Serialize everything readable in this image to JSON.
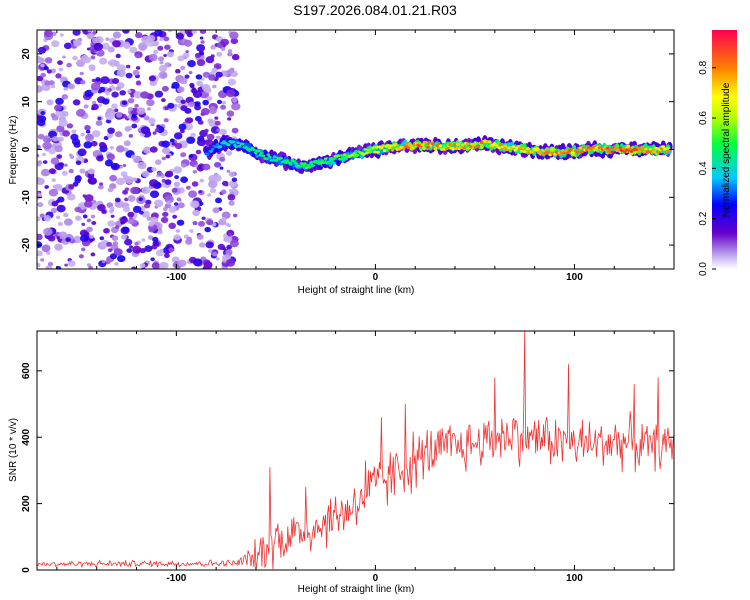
{
  "title": "S197.2026.084.01.21.R03",
  "chart_data": [
    {
      "type": "heatmap",
      "name": "spectrogram",
      "xlabel": "Height of straight line (km)",
      "ylabel": "Frequency (Hz)",
      "xlim": [
        -170,
        150
      ],
      "ylim": [
        -25,
        25
      ],
      "xticks": [
        -100,
        0,
        100
      ],
      "yticks": [
        -20,
        -10,
        0,
        10,
        20
      ],
      "colorbar": {
        "label": "Normalized spectral amplitude",
        "range": [
          0,
          0.95
        ],
        "ticks": [
          0.0,
          0.2,
          0.4,
          0.6,
          0.8
        ],
        "tick_labels": [
          "0.0",
          "0.2",
          "0.4",
          "0.6",
          "0.8"
        ]
      },
      "noise_region": {
        "x": [
          -170,
          -70
        ],
        "y": [
          -25,
          25
        ],
        "amplitude": [
          0.05,
          0.25
        ]
      },
      "ridge": {
        "x": [
          -85,
          -75,
          -65,
          -55,
          -45,
          -35,
          -25,
          -15,
          -5,
          5,
          15,
          25,
          35,
          45,
          55,
          65,
          75,
          85,
          95,
          105,
          115,
          125,
          135,
          148
        ],
        "freq": [
          -0.5,
          1.5,
          0.5,
          -1.5,
          -2.5,
          -3.5,
          -2.5,
          -1.5,
          -0.5,
          0.3,
          0.8,
          1.0,
          0.5,
          0.8,
          1.2,
          0.5,
          0.0,
          -0.5,
          -0.5,
          0.0,
          0.0,
          0.0,
          0.0,
          0.0
        ],
        "amplitude": [
          0.35,
          0.45,
          0.45,
          0.5,
          0.5,
          0.55,
          0.55,
          0.6,
          0.65,
          0.75,
          0.85,
          0.9,
          0.8,
          0.85,
          0.85,
          0.8,
          0.8,
          0.85,
          0.85,
          0.85,
          0.9,
          0.95,
          0.85,
          0.8
        ]
      }
    },
    {
      "type": "line",
      "name": "snr",
      "xlabel": "Height of straight line (km)",
      "ylabel": "SNR (10 * v/v)",
      "xlim": [
        -170,
        150
      ],
      "ylim": [
        0,
        720
      ],
      "xticks": [
        -100,
        0,
        100
      ],
      "yticks": [
        0,
        200,
        400,
        600
      ],
      "color": "#ee3333",
      "envelope": {
        "x": [
          -170,
          -70,
          -62,
          -50,
          -40,
          -30,
          -20,
          -10,
          0,
          10,
          20,
          30,
          40,
          50,
          60,
          70,
          80,
          90,
          100,
          110,
          120,
          130,
          140,
          150
        ],
        "mean": [
          18,
          20,
          35,
          90,
          110,
          130,
          160,
          200,
          250,
          290,
          330,
          360,
          370,
          380,
          400,
          410,
          400,
          390,
          380,
          380,
          390,
          380,
          370,
          380
        ],
        "amp": [
          8,
          10,
          40,
          70,
          70,
          70,
          70,
          70,
          80,
          80,
          80,
          70,
          70,
          70,
          70,
          80,
          70,
          70,
          70,
          70,
          70,
          70,
          60,
          60
        ]
      },
      "peaks": [
        {
          "x": -53,
          "y": 310
        },
        {
          "x": -35,
          "y": 250
        },
        {
          "x": -5,
          "y": 330
        },
        {
          "x": 3,
          "y": 460
        },
        {
          "x": 15,
          "y": 500
        },
        {
          "x": 60,
          "y": 580
        },
        {
          "x": 75,
          "y": 720
        },
        {
          "x": 97,
          "y": 620
        },
        {
          "x": 130,
          "y": 560
        },
        {
          "x": 142,
          "y": 580
        }
      ]
    }
  ]
}
